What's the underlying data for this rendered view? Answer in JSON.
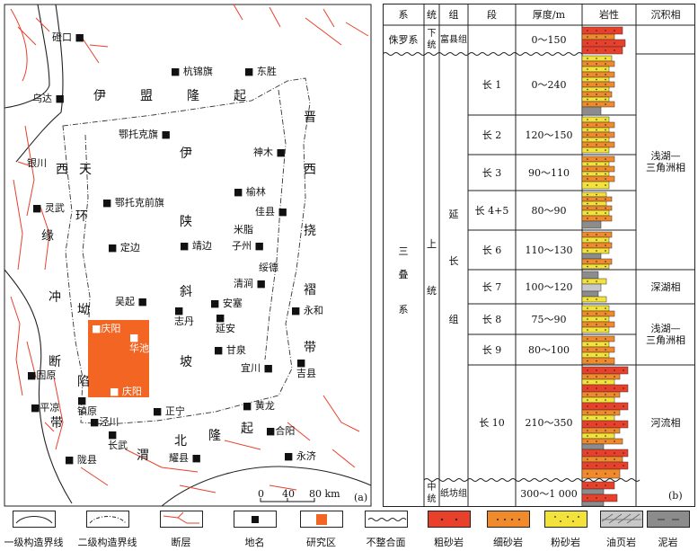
{
  "panel_labels": {
    "map": "(a)",
    "column": "(b)"
  },
  "map": {
    "places": [
      {
        "id": "dengkou",
        "label": "磴口"
      },
      {
        "id": "hangjinqi",
        "label": "杭锦旗"
      },
      {
        "id": "dongsheng",
        "label": "东胜"
      },
      {
        "id": "wuda",
        "label": "乌达"
      },
      {
        "id": "etuokeqi",
        "label": "鄂托克旗"
      },
      {
        "id": "shenmu",
        "label": "神木"
      },
      {
        "id": "yinchuan",
        "label": "银川"
      },
      {
        "id": "yulin",
        "label": "榆林"
      },
      {
        "id": "etuokeqianqi",
        "label": "鄂托克前旗"
      },
      {
        "id": "lingwu",
        "label": "灵武"
      },
      {
        "id": "jiaxian",
        "label": "佳县"
      },
      {
        "id": "mizhi",
        "label": "米脂"
      },
      {
        "id": "zizhou",
        "label": "子州"
      },
      {
        "id": "dingbian",
        "label": "定边"
      },
      {
        "id": "jingbian",
        "label": "靖边"
      },
      {
        "id": "suide",
        "label": "绥德"
      },
      {
        "id": "qingjian",
        "label": "清涧"
      },
      {
        "id": "wuqi",
        "label": "吴起"
      },
      {
        "id": "ansai",
        "label": "安塞"
      },
      {
        "id": "zhidan",
        "label": "志丹"
      },
      {
        "id": "yanan",
        "label": "延安"
      },
      {
        "id": "yonghe",
        "label": "永和"
      },
      {
        "id": "qingyang1",
        "label": "庆阳"
      },
      {
        "id": "huachi",
        "label": "华池"
      },
      {
        "id": "ganquan",
        "label": "甘泉"
      },
      {
        "id": "yichuan",
        "label": "宜川"
      },
      {
        "id": "jixian",
        "label": "吉县"
      },
      {
        "id": "guyuan",
        "label": "固原"
      },
      {
        "id": "qingyang2",
        "label": "庆阳"
      },
      {
        "id": "zhenyuan",
        "label": "镇原"
      },
      {
        "id": "pingliang",
        "label": "平凉"
      },
      {
        "id": "jingchuan",
        "label": "泾川"
      },
      {
        "id": "zhengning",
        "label": "正宁"
      },
      {
        "id": "huanglong",
        "label": "黄龙"
      },
      {
        "id": "heyang",
        "label": "合阳"
      },
      {
        "id": "changwu",
        "label": "长武"
      },
      {
        "id": "longxian",
        "label": "陇县"
      },
      {
        "id": "yaoxian",
        "label": "耀县"
      },
      {
        "id": "yongji",
        "label": "永济"
      }
    ],
    "regions": {
      "ymlq": [
        "伊",
        "盟",
        "隆",
        "起"
      ],
      "xtyh": [
        "西",
        "天",
        "环",
        "坳",
        "陷"
      ],
      "yssp": [
        "伊",
        "陕",
        "斜",
        "坡"
      ],
      "jxrd": [
        "晋",
        "西",
        "挠",
        "褶",
        "带"
      ],
      "wlc": [
        "缘",
        "冲",
        "断",
        "带"
      ],
      "wbnq": [
        "渭",
        "北",
        "隆",
        "起"
      ]
    },
    "scale": {
      "ticks": [
        "0",
        "40",
        "80 km"
      ]
    }
  },
  "column": {
    "headers": [
      "系",
      "统",
      "组",
      "段",
      "厚度/m",
      "岩性",
      "沉积相"
    ],
    "systems": [
      "侏罗系",
      "三\n\n叠\n\n\n系"
    ],
    "series": [
      "下\n统",
      "上\n\n\n\n统",
      "中\n统"
    ],
    "formations": [
      "富县组",
      "延\n\n\n\n长\n\n\n\n\n组",
      "纸坊组"
    ],
    "members": [
      {
        "name": "长 1",
        "thickness": "0～240"
      },
      {
        "name": "长 2",
        "thickness": "120～150"
      },
      {
        "name": "长 3",
        "thickness": "90～110"
      },
      {
        "name": "长 4+5",
        "thickness": "80～90"
      },
      {
        "name": "长 6",
        "thickness": "110～130"
      },
      {
        "name": "长 7",
        "thickness": "100～120"
      },
      {
        "name": "长 8",
        "thickness": "75～90"
      },
      {
        "name": "长 9",
        "thickness": "80～100"
      },
      {
        "name": "长 10",
        "thickness": "210～350"
      }
    ],
    "fuxian_thickness": "0～150",
    "zhifang_thickness": "300～1 000",
    "facies": [
      "浅湖—\n三角洲相",
      "深湖相",
      "浅湖—\n三角洲相",
      "河流相"
    ]
  },
  "legend": [
    {
      "label": "一级构造界线",
      "kind": "line1"
    },
    {
      "label": "二级构造界线",
      "kind": "line2"
    },
    {
      "label": "断层",
      "kind": "fault"
    },
    {
      "label": "地名",
      "kind": "place"
    },
    {
      "label": "研究区",
      "kind": "study"
    },
    {
      "label": "不整合面",
      "kind": "wave"
    },
    {
      "label": "粗砂岩",
      "kind": "coarse",
      "color": "#e8402a"
    },
    {
      "label": "细砂岩",
      "kind": "fine",
      "color": "#f08a2a"
    },
    {
      "label": "粉砂岩",
      "kind": "silt",
      "color": "#f2e23a"
    },
    {
      "label": "油页岩",
      "kind": "oilshale",
      "color": "#c8c8c8"
    },
    {
      "label": "泥岩",
      "kind": "mud",
      "color": "#8c8c8c"
    }
  ],
  "colors": {
    "study_area": "#f26522",
    "fault": "#e8402a",
    "coarse": "#e8402a",
    "fine": "#f08a2a",
    "silt": "#f2e23a",
    "mud": "#8c8c8c"
  }
}
